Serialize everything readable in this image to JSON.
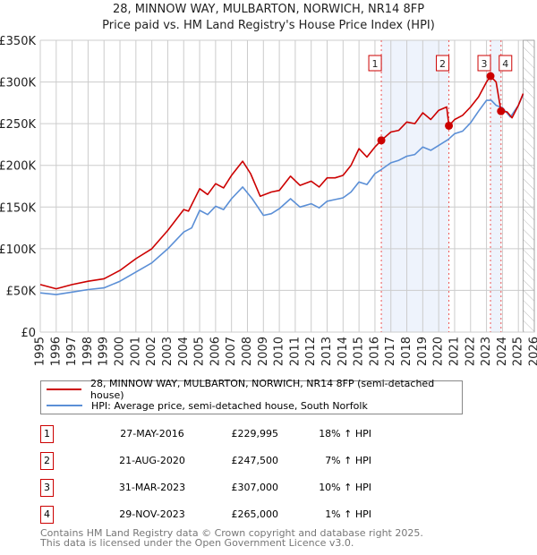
{
  "chart_data": {
    "type": "line",
    "title": "28, MINNOW WAY, MULBARTON, NORWICH, NR14 8FP",
    "subtitle": "Price paid vs. HM Land Registry's House Price Index (HPI)",
    "xlim": [
      1995,
      2026
    ],
    "ylim": [
      0,
      350000
    ],
    "y_ticks": [
      {
        "v": 0,
        "label": "£0"
      },
      {
        "v": 50000,
        "label": "£50K"
      },
      {
        "v": 100000,
        "label": "£100K"
      },
      {
        "v": 150000,
        "label": "£150K"
      },
      {
        "v": 200000,
        "label": "£200K"
      },
      {
        "v": 250000,
        "label": "£250K"
      },
      {
        "v": 300000,
        "label": "£300K"
      },
      {
        "v": 350000,
        "label": "£350K"
      }
    ],
    "x_ticks": [
      "1995",
      "1996",
      "1997",
      "1998",
      "1999",
      "2000",
      "2001",
      "2002",
      "2003",
      "2004",
      "2005",
      "2006",
      "2007",
      "2008",
      "2009",
      "2010",
      "2011",
      "2012",
      "2013",
      "2014",
      "2015",
      "2016",
      "2017",
      "2018",
      "2019",
      "2020",
      "2021",
      "2022",
      "2023",
      "2024",
      "2025",
      "2026"
    ],
    "grid": true,
    "future_hatch_from": 2025.3,
    "shaded_periods": [
      [
        2016.4,
        2020.64
      ],
      [
        2023.25,
        2023.91
      ]
    ],
    "series": [
      {
        "name": "28, MINNOW WAY, MULBARTON, NORWICH, NR14 8FP (semi-detached house)",
        "color": "#cc0000",
        "x": [
          1995,
          1996,
          1997,
          1998,
          1999,
          2000,
          2001,
          2002,
          2003,
          2004,
          2004.3,
          2005,
          2005.5,
          2006,
          2006.5,
          2007,
          2007.7,
          2008.2,
          2008.8,
          2009.5,
          2010,
          2010.7,
          2011.3,
          2012,
          2012.5,
          2013,
          2013.5,
          2014,
          2014.5,
          2015,
          2015.5,
          2016,
          2016.4,
          2017,
          2017.5,
          2018,
          2018.5,
          2019,
          2019.5,
          2020,
          2020.5,
          2020.64,
          2021,
          2021.5,
          2022,
          2022.5,
          2023,
          2023.25,
          2023.6,
          2023.91,
          2024.3,
          2024.6,
          2025,
          2025.3
        ],
        "y": [
          57000,
          52000,
          57000,
          61000,
          64000,
          74000,
          88000,
          100000,
          122000,
          147000,
          145000,
          172000,
          165000,
          178000,
          173000,
          188000,
          205000,
          190000,
          163000,
          168000,
          170000,
          187000,
          176000,
          181000,
          174000,
          185000,
          185000,
          188000,
          200000,
          220000,
          210000,
          222000,
          229995,
          240000,
          242000,
          252000,
          250000,
          263000,
          255000,
          266000,
          270000,
          247500,
          255000,
          260000,
          270000,
          282000,
          300000,
          307000,
          300000,
          265000,
          264000,
          257000,
          272000,
          286000
        ]
      },
      {
        "name": "HPI: Average price, semi-detached house, South Norfolk",
        "color": "#5b8fd6",
        "x": [
          1995,
          1996,
          1997,
          1998,
          1999,
          2000,
          2001,
          2002,
          2003,
          2004,
          2004.5,
          2005,
          2005.5,
          2006,
          2006.5,
          2007,
          2007.7,
          2008.3,
          2009,
          2009.5,
          2010,
          2010.7,
          2011.3,
          2012,
          2012.5,
          2013,
          2013.5,
          2014,
          2014.5,
          2015,
          2015.5,
          2016,
          2016.4,
          2017,
          2017.5,
          2018,
          2018.5,
          2019,
          2019.5,
          2020,
          2020.6,
          2021,
          2021.5,
          2022,
          2022.5,
          2023,
          2023.3,
          2023.6,
          2024,
          2024.5,
          2025,
          2025.3
        ],
        "y": [
          47000,
          45000,
          48000,
          51000,
          53000,
          61000,
          72000,
          83000,
          100000,
          120000,
          125000,
          146000,
          141000,
          151000,
          147000,
          160000,
          174000,
          160000,
          140000,
          142000,
          148000,
          160000,
          150000,
          154000,
          149000,
          157000,
          159000,
          161000,
          168000,
          180000,
          177000,
          190000,
          195000,
          203000,
          206000,
          211000,
          213000,
          222000,
          218000,
          224000,
          231000,
          238000,
          241000,
          251000,
          265000,
          278000,
          278000,
          272000,
          269000,
          258000,
          272000,
          285000
        ]
      }
    ],
    "sales": [
      {
        "label": "1",
        "x": 2016.4,
        "y": 229995
      },
      {
        "label": "2",
        "x": 2020.64,
        "y": 247500
      },
      {
        "label": "3",
        "x": 2023.25,
        "y": 307000
      },
      {
        "label": "4",
        "x": 2023.91,
        "y": 265000
      }
    ]
  },
  "legend": {
    "property": "28, MINNOW WAY, MULBARTON, NORWICH, NR14 8FP (semi-detached house)",
    "hpi": "HPI: Average price, semi-detached house, South Norfolk"
  },
  "transactions": [
    {
      "num": "1",
      "date": "27-MAY-2016",
      "price": "£229,995",
      "hpi": "18% ↑ HPI"
    },
    {
      "num": "2",
      "date": "21-AUG-2020",
      "price": "£247,500",
      "hpi": "7% ↑ HPI"
    },
    {
      "num": "3",
      "date": "31-MAR-2023",
      "price": "£307,000",
      "hpi": "10% ↑ HPI"
    },
    {
      "num": "4",
      "date": "29-NOV-2023",
      "price": "£265,000",
      "hpi": "1% ↑ HPI"
    }
  ],
  "footer": {
    "line1": "Contains HM Land Registry data © Crown copyright and database right 2025.",
    "line2": "This data is licensed under the Open Government Licence v3.0."
  }
}
